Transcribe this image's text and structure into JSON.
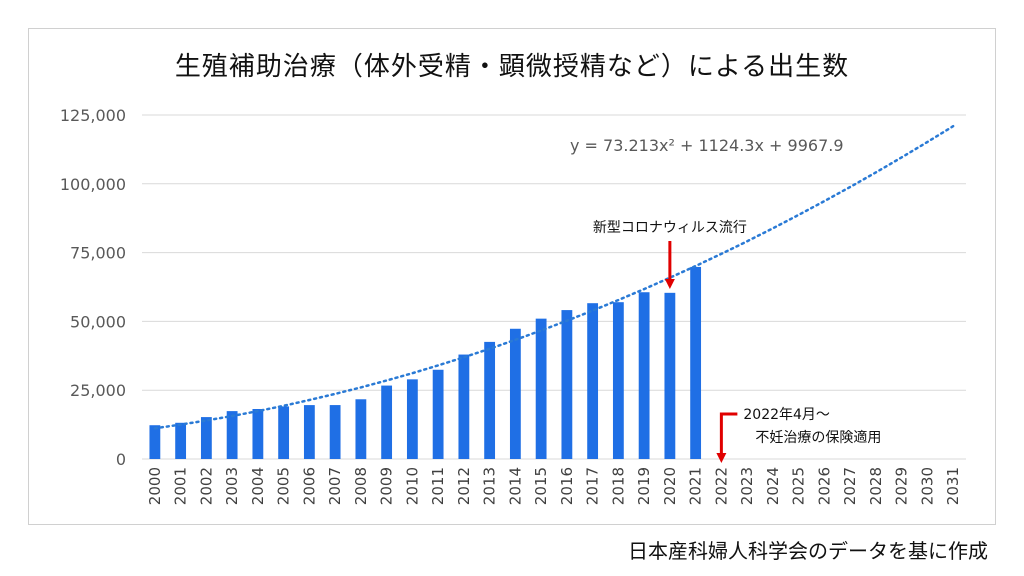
{
  "chart_data": {
    "type": "bar",
    "title": "生殖補助治療（体外受精・顕微授精など）による出生数",
    "categories": [
      "2000",
      "2001",
      "2002",
      "2003",
      "2004",
      "2005",
      "2006",
      "2007",
      "2008",
      "2009",
      "2010",
      "2011",
      "2012",
      "2013",
      "2014",
      "2015",
      "2016",
      "2017",
      "2018",
      "2019",
      "2020",
      "2021",
      "2022",
      "2023",
      "2024",
      "2025",
      "2026",
      "2027",
      "2028",
      "2029",
      "2030",
      "2031"
    ],
    "values": [
      12275,
      13158,
      15228,
      17400,
      18168,
      19112,
      19587,
      19595,
      21704,
      26680,
      28945,
      32426,
      37953,
      42554,
      47322,
      51001,
      54110,
      56617,
      56979,
      60598,
      60381,
      69797,
      null,
      null,
      null,
      null,
      null,
      null,
      null,
      null,
      null,
      null
    ],
    "ylim": [
      0,
      125000
    ],
    "yticks": [
      "0",
      "25,000",
      "50,000",
      "75,000",
      "100,000",
      "125,000"
    ],
    "ytick_values": [
      0,
      25000,
      50000,
      75000,
      100000,
      125000
    ],
    "grid": true,
    "bar_color": "#1f6fe5",
    "trendline": {
      "type": "polynomial",
      "a": 73.213,
      "b": 1124.3,
      "c": 9967.9,
      "equation": "y = 73.213x² + 1124.3x + 9967.9",
      "color": "#2a7ad5"
    },
    "annotations": [
      {
        "text": "新型コロナウィルス流行",
        "category": "2020",
        "arrow_color": "#e00000"
      },
      {
        "lines": [
          "2022年4月～",
          "不妊治療の保険適用"
        ],
        "category": "2022",
        "arrow_color": "#e00000"
      }
    ]
  },
  "source": "日本産科婦人科学会のデータを基に作成"
}
